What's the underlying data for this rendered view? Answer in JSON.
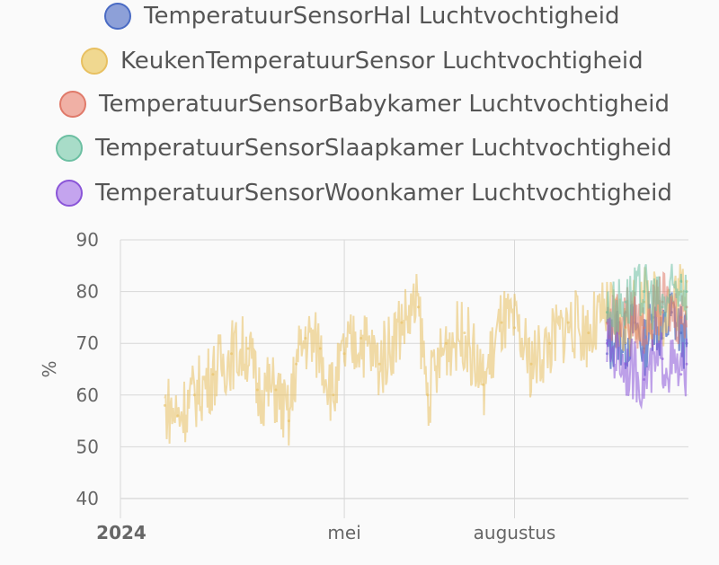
{
  "chart_data": {
    "type": "line",
    "ylabel": "%",
    "ylim": [
      40,
      90
    ],
    "y_ticks": [
      90,
      80,
      70,
      60,
      50,
      40
    ],
    "x_ticks": [
      {
        "label": "2024",
        "bold": true,
        "date": "2024-01-01"
      },
      {
        "label": "mei",
        "bold": false,
        "date": "2024-05-01"
      },
      {
        "label": "augustus",
        "bold": false,
        "date": "2024-08-01"
      }
    ],
    "grid": true,
    "legend_placement": "top",
    "series": [
      {
        "name": "TemperatuurSensorHal Luchtvochtigheid",
        "color": "#4a6bc4",
        "fill": "#8da0d8",
        "points": [
          [
            "2024-09-20",
            68
          ],
          [
            "2024-09-25",
            72
          ],
          [
            "2024-09-30",
            70
          ],
          [
            "2024-10-05",
            74
          ],
          [
            "2024-10-10",
            69
          ],
          [
            "2024-10-15",
            75
          ],
          [
            "2024-10-20",
            71
          ],
          [
            "2024-10-25",
            76
          ],
          [
            "2024-10-30",
            72
          ],
          [
            "2024-11-02",
            70
          ]
        ]
      },
      {
        "name": "KeukenTemperatuurSensor Luchtvochtigheid",
        "color": "#e8c060",
        "fill": "#f0d890",
        "points": [
          [
            "2024-01-25",
            58
          ],
          [
            "2024-02-01",
            56
          ],
          [
            "2024-02-10",
            60
          ],
          [
            "2024-02-20",
            64
          ],
          [
            "2024-03-01",
            68
          ],
          [
            "2024-03-10",
            69
          ],
          [
            "2024-03-15",
            61
          ],
          [
            "2024-03-25",
            61
          ],
          [
            "2024-04-01",
            55
          ],
          [
            "2024-04-05",
            66
          ],
          [
            "2024-04-10",
            71
          ],
          [
            "2024-04-18",
            69
          ],
          [
            "2024-04-25",
            60
          ],
          [
            "2024-05-01",
            68
          ],
          [
            "2024-05-10",
            71
          ],
          [
            "2024-05-20",
            66
          ],
          [
            "2024-06-01",
            74
          ],
          [
            "2024-06-10",
            77
          ],
          [
            "2024-06-15",
            60
          ],
          [
            "2024-06-25",
            70
          ],
          [
            "2024-07-05",
            72
          ],
          [
            "2024-07-15",
            62
          ],
          [
            "2024-07-25",
            74
          ],
          [
            "2024-08-01",
            73
          ],
          [
            "2024-08-10",
            66
          ],
          [
            "2024-08-20",
            70
          ],
          [
            "2024-08-30",
            74
          ],
          [
            "2024-09-10",
            72
          ],
          [
            "2024-09-20",
            76
          ],
          [
            "2024-09-30",
            73
          ],
          [
            "2024-10-10",
            78
          ],
          [
            "2024-10-20",
            76
          ],
          [
            "2024-10-30",
            80
          ],
          [
            "2024-11-02",
            82
          ]
        ]
      },
      {
        "name": "TemperatuurSensorBabykamer Luchtvochtigheid",
        "color": "#e07a6a",
        "fill": "#f0b0a5",
        "points": [
          [
            "2024-09-20",
            74
          ],
          [
            "2024-09-30",
            76
          ],
          [
            "2024-10-10",
            73
          ],
          [
            "2024-10-20",
            78
          ],
          [
            "2024-10-30",
            75
          ],
          [
            "2024-11-02",
            77
          ]
        ]
      },
      {
        "name": "TemperatuurSensorSlaapkamer Luchtvochtigheid",
        "color": "#6cbfa2",
        "fill": "#a8dcc8",
        "points": [
          [
            "2024-09-20",
            76
          ],
          [
            "2024-09-30",
            78
          ],
          [
            "2024-10-10",
            80
          ],
          [
            "2024-10-20",
            77
          ],
          [
            "2024-10-30",
            82
          ],
          [
            "2024-11-02",
            80
          ]
        ]
      },
      {
        "name": "TemperatuurSensorWoonkamer Luchtvochtigheid",
        "color": "#8a55d8",
        "fill": "#c4a4ee",
        "points": [
          [
            "2024-09-20",
            70
          ],
          [
            "2024-09-30",
            66
          ],
          [
            "2024-10-10",
            63
          ],
          [
            "2024-10-20",
            67
          ],
          [
            "2024-10-30",
            64
          ],
          [
            "2024-11-02",
            66
          ]
        ]
      }
    ]
  }
}
